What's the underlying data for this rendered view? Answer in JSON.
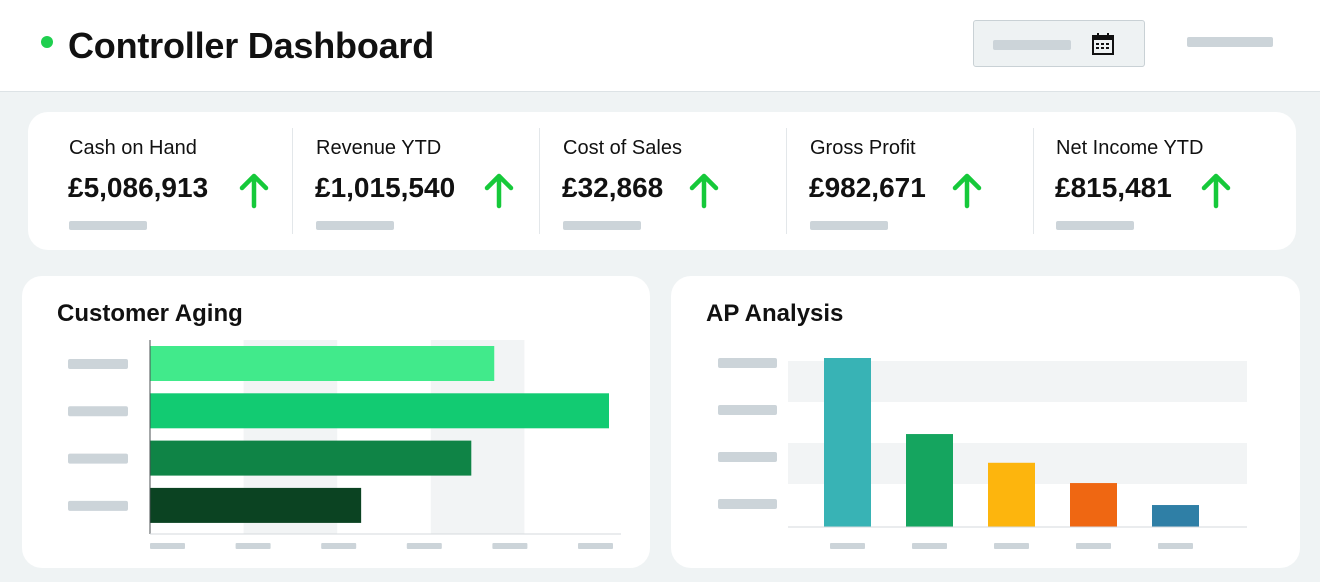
{
  "header": {
    "title": "Controller Dashboard",
    "status_color": "#1fcf4f",
    "date_picker_icon": "calendar-icon"
  },
  "kpis": [
    {
      "label": "Cash on Hand",
      "value": "£5,086,913",
      "trend": "up"
    },
    {
      "label": "Revenue YTD",
      "value": "£1,015,540",
      "trend": "up"
    },
    {
      "label": "Cost of Sales",
      "value": "£32,868",
      "trend": "up"
    },
    {
      "label": "Gross Profit",
      "value": "£982,671",
      "trend": "up"
    },
    {
      "label": "Net Income YTD",
      "value": "£815,481",
      "trend": "up"
    }
  ],
  "colors": {
    "trend_up": "#16c93a",
    "placeholder": "#ccd4d9"
  },
  "chart_data": [
    {
      "type": "bar",
      "orientation": "horizontal",
      "title": "Customer Aging",
      "categories": [
        "",
        "",
        "",
        ""
      ],
      "values": [
        0.75,
        1.0,
        0.7,
        0.46
      ],
      "xlim": [
        0,
        1.0
      ],
      "colors": [
        "#41ea8b",
        "#12cb72",
        "#0f8446",
        "#0b4322"
      ],
      "grid": "alternating-bands"
    },
    {
      "type": "bar",
      "orientation": "vertical",
      "title": "AP Analysis",
      "categories": [
        "",
        "",
        "",
        "",
        ""
      ],
      "values": [
        1.0,
        0.55,
        0.38,
        0.26,
        0.13
      ],
      "ylim": [
        0,
        1.0
      ],
      "colors": [
        "#38b3b5",
        "#15a55f",
        "#fdb50d",
        "#ef6712",
        "#2f7fa6"
      ],
      "grid": "alternating-bands"
    }
  ]
}
